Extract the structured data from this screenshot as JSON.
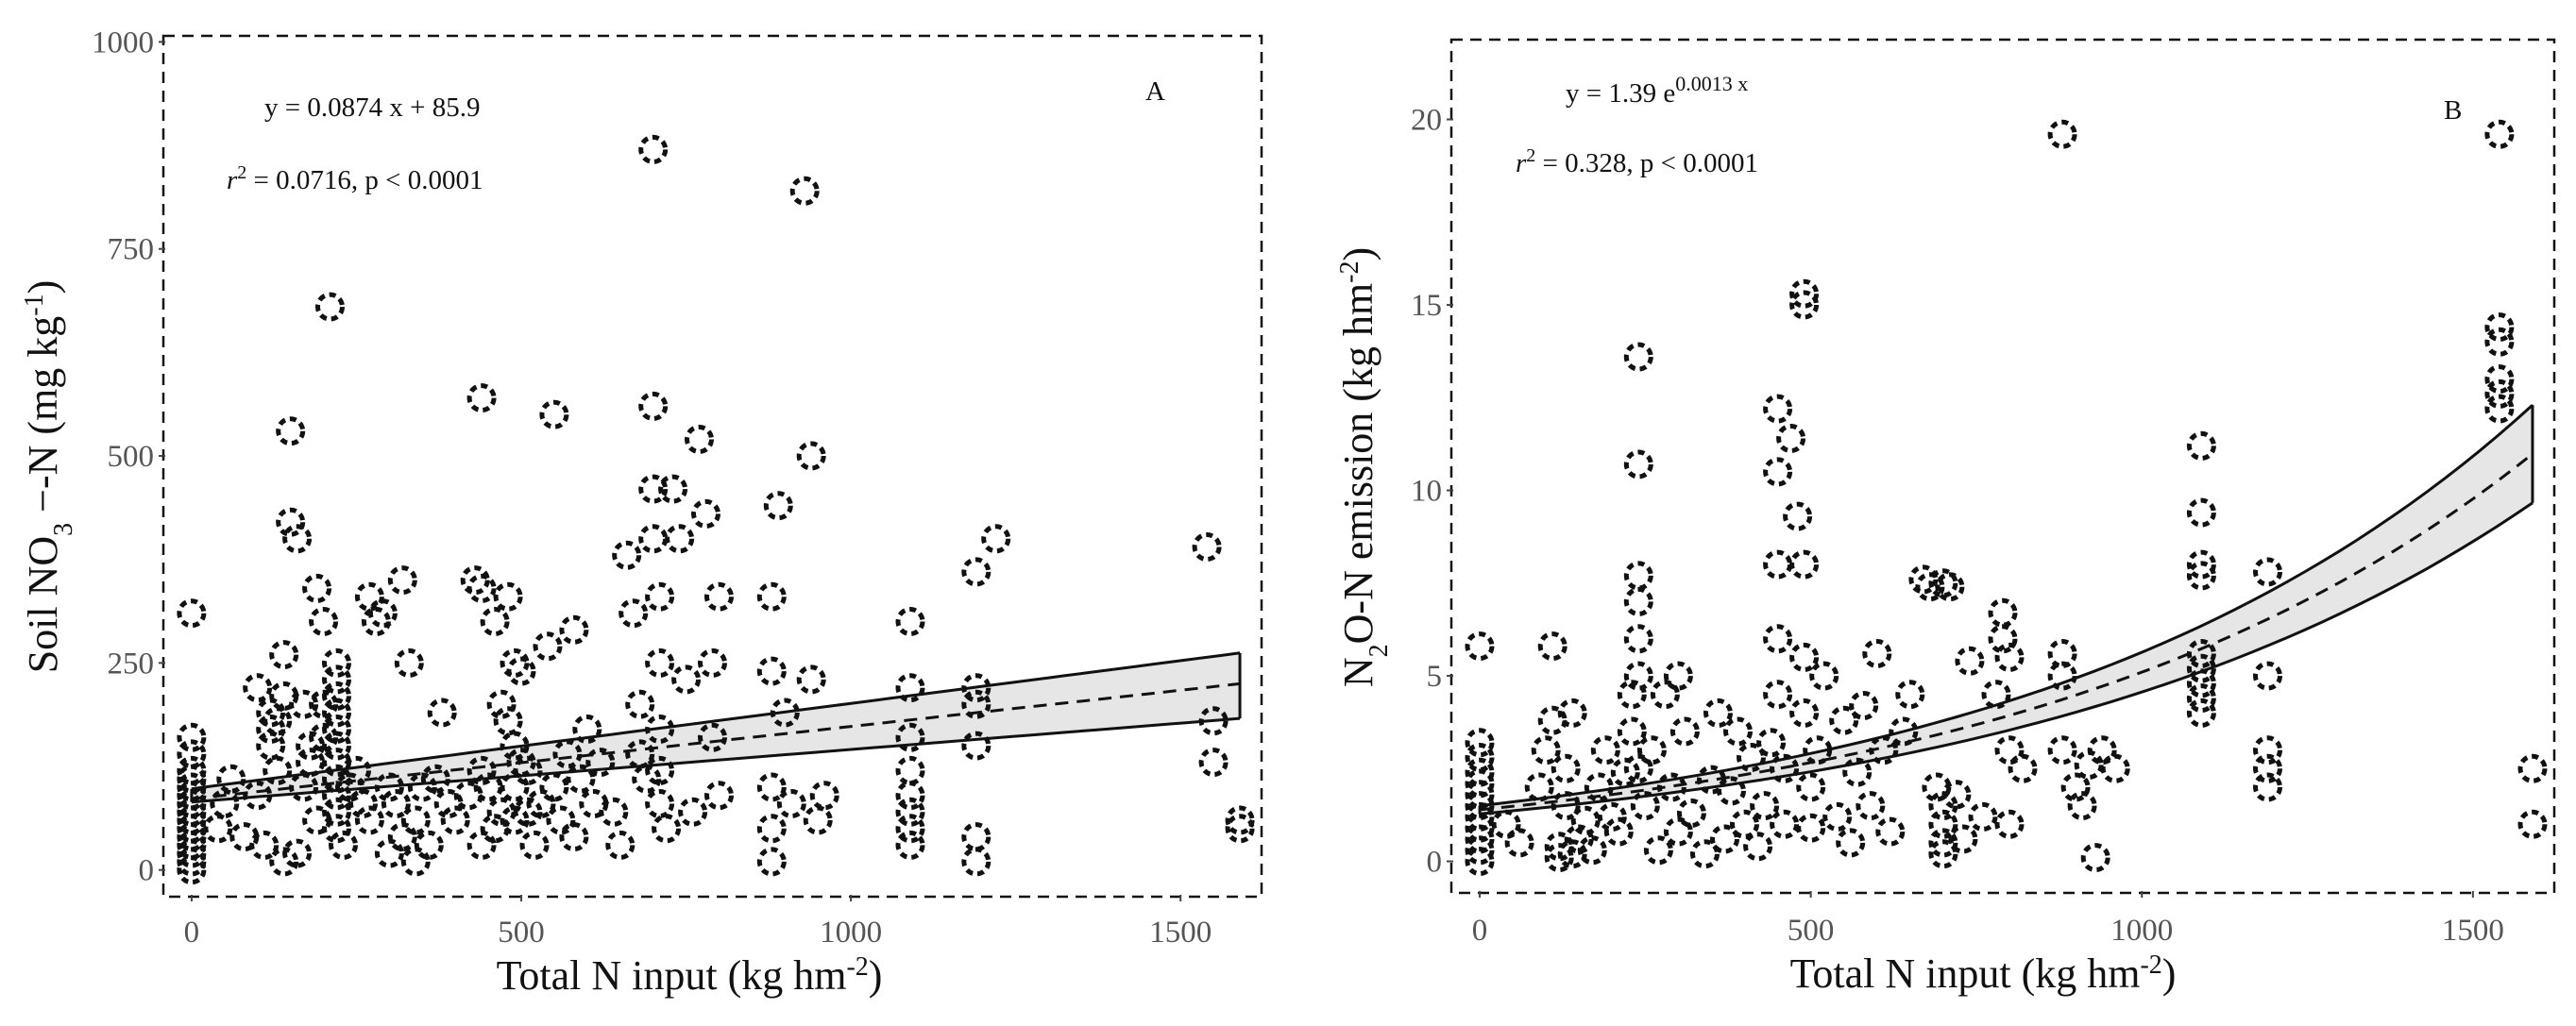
{
  "chart_data": [
    {
      "id": "A",
      "type": "scatter",
      "panel_label": "A",
      "xlabel": "Total N input (kg hm",
      "xlabel_sup": "-2",
      "xlabel_end": ")",
      "ylabel_prefix": "Soil NO",
      "ylabel_sub": "3",
      "ylabel_rest": " −-N (mg kg",
      "ylabel_sup": "-1",
      "ylabel_end": ")",
      "xlim": [
        -40,
        1620
      ],
      "ylim": [
        -30,
        1005
      ],
      "xticks": [
        0,
        500,
        1000,
        1500
      ],
      "xtick_labels": [
        "0",
        "500",
        "1000",
        "1500"
      ],
      "yticks": [
        0,
        250,
        500,
        750,
        1000
      ],
      "ytick_labels": [
        "0",
        "250",
        "500",
        "750",
        "1000"
      ],
      "equation": {
        "lhs": "y = 0.0874 x + 85.9"
      },
      "stats": {
        "r": "r",
        "r_sup": "2",
        "rest": " = 0.0716,  p  < 0.0001"
      },
      "fit": {
        "kind": "linear",
        "slope": 0.0874,
        "intercept": 85.9,
        "ci_lower": [
          [
            0,
            82
          ],
          [
            1590,
            183
          ]
        ],
        "ci_upper": [
          [
            0,
            98
          ],
          [
            1590,
            262
          ]
        ],
        "x_range": [
          0,
          1590
        ]
      },
      "points": [
        [
          0,
          0
        ],
        [
          0,
          10
        ],
        [
          0,
          20
        ],
        [
          0,
          30
        ],
        [
          0,
          40
        ],
        [
          0,
          50
        ],
        [
          0,
          60
        ],
        [
          0,
          70
        ],
        [
          0,
          80
        ],
        [
          0,
          90
        ],
        [
          0,
          100
        ],
        [
          0,
          110
        ],
        [
          0,
          120
        ],
        [
          0,
          140
        ],
        [
          0,
          160
        ],
        [
          0,
          310
        ],
        [
          40,
          50
        ],
        [
          50,
          80
        ],
        [
          60,
          110
        ],
        [
          80,
          40
        ],
        [
          100,
          90
        ],
        [
          100,
          220
        ],
        [
          110,
          30
        ],
        [
          120,
          150
        ],
        [
          120,
          170
        ],
        [
          120,
          190
        ],
        [
          130,
          180
        ],
        [
          130,
          120
        ],
        [
          140,
          210
        ],
        [
          140,
          260
        ],
        [
          140,
          10
        ],
        [
          150,
          530
        ],
        [
          150,
          420
        ],
        [
          160,
          400
        ],
        [
          160,
          20
        ],
        [
          170,
          200
        ],
        [
          170,
          100
        ],
        [
          180,
          150
        ],
        [
          180,
          130
        ],
        [
          190,
          340
        ],
        [
          190,
          60
        ],
        [
          200,
          300
        ],
        [
          200,
          160
        ],
        [
          200,
          200
        ],
        [
          210,
          680
        ],
        [
          220,
          250
        ],
        [
          220,
          230
        ],
        [
          220,
          210
        ],
        [
          220,
          190
        ],
        [
          220,
          170
        ],
        [
          220,
          150
        ],
        [
          220,
          130
        ],
        [
          220,
          110
        ],
        [
          220,
          90
        ],
        [
          220,
          70
        ],
        [
          220,
          50
        ],
        [
          230,
          30
        ],
        [
          240,
          100
        ],
        [
          250,
          120
        ],
        [
          260,
          80
        ],
        [
          270,
          330
        ],
        [
          270,
          60
        ],
        [
          280,
          300
        ],
        [
          290,
          310
        ],
        [
          300,
          100
        ],
        [
          300,
          20
        ],
        [
          310,
          80
        ],
        [
          320,
          350
        ],
        [
          320,
          40
        ],
        [
          330,
          250
        ],
        [
          340,
          60
        ],
        [
          340,
          10
        ],
        [
          350,
          100
        ],
        [
          360,
          30
        ],
        [
          370,
          110
        ],
        [
          380,
          190
        ],
        [
          390,
          80
        ],
        [
          400,
          60
        ],
        [
          420,
          90
        ],
        [
          430,
          350
        ],
        [
          440,
          570
        ],
        [
          440,
          340
        ],
        [
          440,
          120
        ],
        [
          440,
          30
        ],
        [
          450,
          100
        ],
        [
          460,
          50
        ],
        [
          460,
          300
        ],
        [
          470,
          200
        ],
        [
          470,
          70
        ],
        [
          480,
          180
        ],
        [
          480,
          330
        ],
        [
          490,
          250
        ],
        [
          490,
          150
        ],
        [
          490,
          100
        ],
        [
          490,
          60
        ],
        [
          500,
          130
        ],
        [
          500,
          240
        ],
        [
          510,
          70
        ],
        [
          510,
          120
        ],
        [
          520,
          30
        ],
        [
          530,
          80
        ],
        [
          540,
          270
        ],
        [
          550,
          550
        ],
        [
          550,
          100
        ],
        [
          560,
          60
        ],
        [
          570,
          140
        ],
        [
          580,
          290
        ],
        [
          580,
          40
        ],
        [
          590,
          110
        ],
        [
          600,
          170
        ],
        [
          610,
          80
        ],
        [
          620,
          130
        ],
        [
          640,
          70
        ],
        [
          650,
          30
        ],
        [
          660,
          380
        ],
        [
          670,
          310
        ],
        [
          680,
          200
        ],
        [
          680,
          140
        ],
        [
          690,
          110
        ],
        [
          700,
          870
        ],
        [
          700,
          560
        ],
        [
          700,
          460
        ],
        [
          700,
          400
        ],
        [
          710,
          330
        ],
        [
          710,
          250
        ],
        [
          710,
          170
        ],
        [
          710,
          120
        ],
        [
          710,
          80
        ],
        [
          720,
          50
        ],
        [
          730,
          460
        ],
        [
          740,
          400
        ],
        [
          750,
          230
        ],
        [
          760,
          70
        ],
        [
          770,
          520
        ],
        [
          780,
          430
        ],
        [
          790,
          250
        ],
        [
          790,
          160
        ],
        [
          800,
          330
        ],
        [
          800,
          90
        ],
        [
          880,
          330
        ],
        [
          880,
          240
        ],
        [
          880,
          100
        ],
        [
          880,
          50
        ],
        [
          880,
          10
        ],
        [
          890,
          440
        ],
        [
          900,
          190
        ],
        [
          910,
          80
        ],
        [
          930,
          820
        ],
        [
          940,
          500
        ],
        [
          940,
          230
        ],
        [
          950,
          60
        ],
        [
          960,
          90
        ],
        [
          1090,
          300
        ],
        [
          1090,
          220
        ],
        [
          1090,
          160
        ],
        [
          1090,
          120
        ],
        [
          1090,
          90
        ],
        [
          1090,
          70
        ],
        [
          1090,
          50
        ],
        [
          1090,
          30
        ],
        [
          1190,
          220
        ],
        [
          1190,
          200
        ],
        [
          1190,
          150
        ],
        [
          1190,
          40
        ],
        [
          1190,
          10
        ],
        [
          1190,
          360
        ],
        [
          1220,
          400
        ],
        [
          1540,
          390
        ],
        [
          1550,
          180
        ],
        [
          1550,
          130
        ],
        [
          1590,
          60
        ],
        [
          1590,
          50
        ]
      ]
    },
    {
      "id": "B",
      "type": "scatter",
      "panel_label": "B",
      "xlabel": "Total N input (kg hm",
      "xlabel_sup": "-2",
      "xlabel_end": ")",
      "ylabel_prefix": "N",
      "ylabel_sub": "2",
      "ylabel_rest": "O-N emission (kg hm",
      "ylabel_sup": "-2",
      "ylabel_end": ")",
      "xlim": [
        -40,
        1620
      ],
      "ylim": [
        -0.8,
        22.1
      ],
      "xticks": [
        0,
        500,
        1000,
        1500
      ],
      "xtick_labels": [
        "0",
        "500",
        "1000",
        "1500"
      ],
      "yticks": [
        0,
        5,
        10,
        15,
        20
      ],
      "ytick_labels": [
        "0",
        "5",
        "10",
        "15",
        "20"
      ],
      "equation": {
        "lhs": "y = 1.39 e",
        "sup": "0.0013 x"
      },
      "stats": {
        "r": "r",
        "r_sup": "2",
        "rest": " = 0.328,  p  < 0.0001"
      },
      "fit": {
        "kind": "exponential",
        "a": 1.39,
        "b": 0.0013,
        "ci_lower_scale": [
          0.92,
          0.88
        ],
        "ci_upper_scale": [
          1.08,
          1.12
        ],
        "x_range": [
          0,
          1590
        ]
      },
      "points": [
        [
          0,
          0
        ],
        [
          0,
          0.3
        ],
        [
          0,
          0.6
        ],
        [
          0,
          0.9
        ],
        [
          0,
          1.2
        ],
        [
          0,
          1.5
        ],
        [
          0,
          1.8
        ],
        [
          0,
          2.1
        ],
        [
          0,
          2.4
        ],
        [
          0,
          2.8
        ],
        [
          0,
          3.2
        ],
        [
          0,
          5.8
        ],
        [
          40,
          1.0
        ],
        [
          60,
          0.5
        ],
        [
          90,
          2.0
        ],
        [
          100,
          3.0
        ],
        [
          110,
          5.8
        ],
        [
          110,
          3.8
        ],
        [
          120,
          0.1
        ],
        [
          120,
          0.4
        ],
        [
          130,
          1.5
        ],
        [
          130,
          2.5
        ],
        [
          140,
          0.2
        ],
        [
          140,
          4.0
        ],
        [
          150,
          0.6
        ],
        [
          160,
          1.1
        ],
        [
          170,
          0.3
        ],
        [
          180,
          2.0
        ],
        [
          190,
          3.0
        ],
        [
          200,
          1.2
        ],
        [
          210,
          0.8
        ],
        [
          220,
          2.4
        ],
        [
          230,
          3.5
        ],
        [
          230,
          4.5
        ],
        [
          240,
          13.6
        ],
        [
          240,
          10.7
        ],
        [
          240,
          7.7
        ],
        [
          240,
          7.0
        ],
        [
          240,
          6.0
        ],
        [
          240,
          5.0
        ],
        [
          240,
          2.5
        ],
        [
          250,
          1.5
        ],
        [
          260,
          3.0
        ],
        [
          270,
          0.3
        ],
        [
          280,
          4.5
        ],
        [
          290,
          2.0
        ],
        [
          300,
          5.0
        ],
        [
          300,
          0.8
        ],
        [
          310,
          3.5
        ],
        [
          320,
          1.3
        ],
        [
          340,
          0.2
        ],
        [
          350,
          2.2
        ],
        [
          360,
          4.0
        ],
        [
          370,
          0.6
        ],
        [
          380,
          1.9
        ],
        [
          390,
          3.5
        ],
        [
          400,
          1.0
        ],
        [
          410,
          2.8
        ],
        [
          420,
          0.4
        ],
        [
          430,
          1.5
        ],
        [
          440,
          3.2
        ],
        [
          450,
          12.2
        ],
        [
          450,
          10.5
        ],
        [
          450,
          8.0
        ],
        [
          450,
          6.0
        ],
        [
          450,
          4.5
        ],
        [
          460,
          2.5
        ],
        [
          460,
          1.0
        ],
        [
          470,
          11.4
        ],
        [
          480,
          9.3
        ],
        [
          490,
          15.3
        ],
        [
          490,
          15.0
        ],
        [
          490,
          8.0
        ],
        [
          490,
          5.5
        ],
        [
          490,
          4.0
        ],
        [
          500,
          2.0
        ],
        [
          500,
          0.9
        ],
        [
          510,
          3.0
        ],
        [
          520,
          5.0
        ],
        [
          540,
          1.2
        ],
        [
          550,
          3.8
        ],
        [
          560,
          0.5
        ],
        [
          570,
          2.4
        ],
        [
          580,
          4.2
        ],
        [
          590,
          1.5
        ],
        [
          600,
          5.6
        ],
        [
          610,
          3.0
        ],
        [
          620,
          0.8
        ],
        [
          640,
          3.5
        ],
        [
          650,
          4.5
        ],
        [
          670,
          7.6
        ],
        [
          680,
          7.4
        ],
        [
          690,
          2.0
        ],
        [
          700,
          7.5
        ],
        [
          700,
          1.5
        ],
        [
          700,
          1.0
        ],
        [
          700,
          0.5
        ],
        [
          700,
          0.2
        ],
        [
          710,
          7.4
        ],
        [
          720,
          1.8
        ],
        [
          730,
          0.6
        ],
        [
          740,
          5.4
        ],
        [
          760,
          1.2
        ],
        [
          780,
          4.5
        ],
        [
          790,
          6.7
        ],
        [
          790,
          6.0
        ],
        [
          800,
          5.5
        ],
        [
          800,
          3.0
        ],
        [
          800,
          1.0
        ],
        [
          820,
          2.5
        ],
        [
          880,
          19.6
        ],
        [
          880,
          5.6
        ],
        [
          880,
          5.0
        ],
        [
          880,
          3.0
        ],
        [
          900,
          2.0
        ],
        [
          910,
          1.5
        ],
        [
          920,
          2.6
        ],
        [
          930,
          0.1
        ],
        [
          940,
          3.0
        ],
        [
          960,
          2.5
        ],
        [
          1090,
          11.2
        ],
        [
          1090,
          9.4
        ],
        [
          1090,
          8.0
        ],
        [
          1090,
          7.7
        ],
        [
          1090,
          5.6
        ],
        [
          1090,
          5.2
        ],
        [
          1090,
          4.8
        ],
        [
          1090,
          4.4
        ],
        [
          1090,
          4.0
        ],
        [
          1190,
          7.8
        ],
        [
          1190,
          5.0
        ],
        [
          1190,
          3.0
        ],
        [
          1190,
          2.5
        ],
        [
          1190,
          2.0
        ],
        [
          1540,
          19.6
        ],
        [
          1540,
          14.4
        ],
        [
          1540,
          14.0
        ],
        [
          1540,
          13.0
        ],
        [
          1540,
          12.6
        ],
        [
          1540,
          12.2
        ],
        [
          1590,
          2.5
        ],
        [
          1590,
          1.0
        ]
      ]
    }
  ]
}
